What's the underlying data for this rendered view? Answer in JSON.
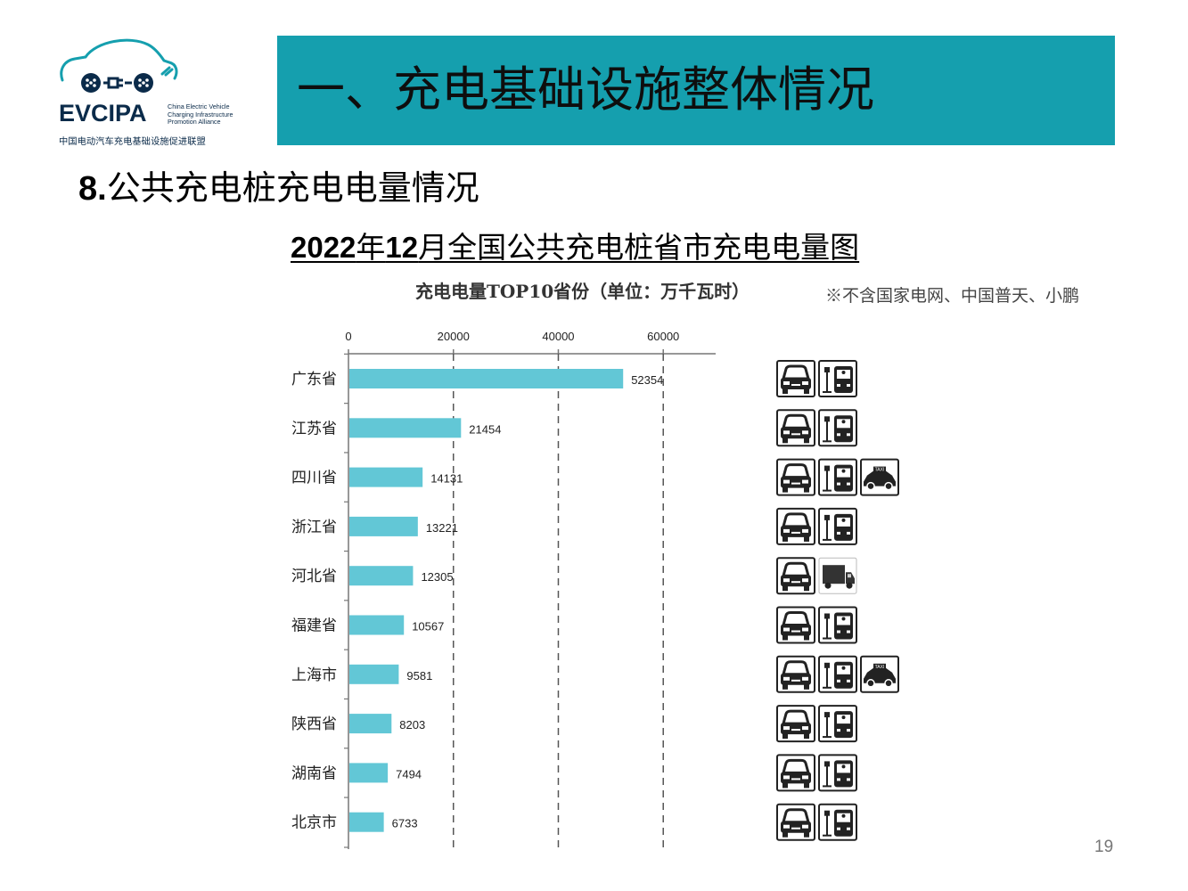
{
  "logo": {
    "brand": "EVCIPA",
    "english_lines": [
      "China Electric Vehicle",
      "Charging Infrastructure",
      "Promotion Alliance"
    ],
    "chinese": "中国电动汽车充电基础设施促进联盟",
    "color": "#159fae"
  },
  "banner": {
    "title": "一、充电基础设施整体情况",
    "color": "#159fae"
  },
  "section": {
    "number": "8.",
    "title": "公共充电桩充电电量情况"
  },
  "chart_title": {
    "year": "2022",
    "part1": "年",
    "num": "12",
    "part2": "月全国公共充电桩省市充电电量图"
  },
  "chart_subtitle": "充电电量TOP10省份（单位：万千瓦时）",
  "note": "※不含国家电网、中国普天、小鹏",
  "page_number": "19",
  "chart_data": {
    "type": "bar",
    "orientation": "horizontal",
    "categories": [
      "广东省",
      "江苏省",
      "四川省",
      "浙江省",
      "河北省",
      "福建省",
      "上海市",
      "陕西省",
      "湖南省",
      "北京市"
    ],
    "values": [
      52354,
      21454,
      14131,
      13221,
      12305,
      10567,
      9581,
      8203,
      7494,
      6733
    ],
    "value_labels": [
      "52354",
      "21454",
      "14131",
      "13221",
      "12305",
      "10567",
      "9581",
      "8203",
      "7494",
      "6733"
    ],
    "x_ticks": [
      "0",
      "20000",
      "40000",
      "60000"
    ],
    "x_tick_values": [
      0,
      20000,
      40000,
      60000
    ],
    "xlim": [
      0,
      70000
    ],
    "axis_position": "top",
    "grid": "vertical dashed",
    "bar_color": "#62c7d6"
  },
  "vehicle_icons": [
    [
      "car-icon",
      "bus-icon"
    ],
    [
      "car-icon",
      "bus-icon"
    ],
    [
      "car-icon",
      "bus-icon",
      "taxi-icon"
    ],
    [
      "car-icon",
      "bus-icon"
    ],
    [
      "car-icon",
      "truck-icon"
    ],
    [
      "car-icon",
      "bus-icon"
    ],
    [
      "car-icon",
      "bus-icon",
      "taxi-icon"
    ],
    [
      "car-icon",
      "bus-icon"
    ],
    [
      "car-icon",
      "bus-icon"
    ],
    [
      "car-icon",
      "bus-icon"
    ]
  ],
  "taxi_sign": "TAXI"
}
